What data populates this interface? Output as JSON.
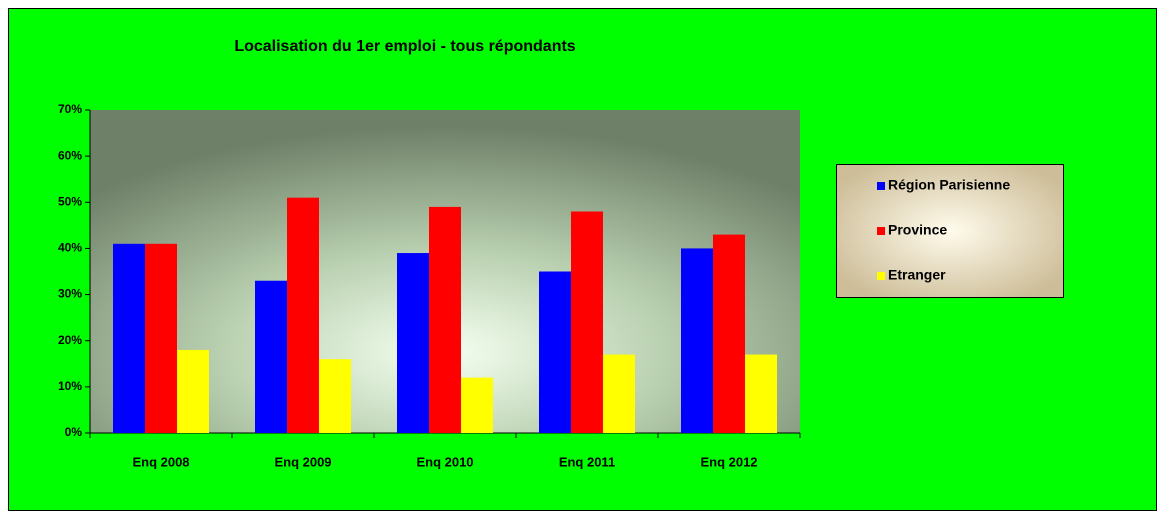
{
  "chart_data": {
    "type": "bar",
    "title": "Localisation du 1er emploi - tous répondants",
    "categories": [
      "Enq 2008",
      "Enq 2009",
      "Enq 2010",
      "Enq 2011",
      "Enq 2012"
    ],
    "series": [
      {
        "name": "Région Parisienne",
        "color": "#0000ff",
        "values": [
          41,
          33,
          39,
          35,
          40
        ]
      },
      {
        "name": "Province",
        "color": "#ff0000",
        "values": [
          41,
          51,
          49,
          48,
          43
        ]
      },
      {
        "name": "Etranger",
        "color": "#ffff00",
        "values": [
          18,
          16,
          12,
          17,
          17
        ]
      }
    ],
    "ylim": [
      0,
      70
    ],
    "yticks": [
      {
        "value": 0,
        "label": "0%"
      },
      {
        "value": 10,
        "label": "10%"
      },
      {
        "value": 20,
        "label": "20%"
      },
      {
        "value": 30,
        "label": "30%"
      },
      {
        "value": 40,
        "label": "40%"
      },
      {
        "value": 50,
        "label": "50%"
      },
      {
        "value": 60,
        "label": "60%"
      },
      {
        "value": 70,
        "label": "70%"
      }
    ],
    "legend": "right",
    "background": "#00ff00"
  }
}
